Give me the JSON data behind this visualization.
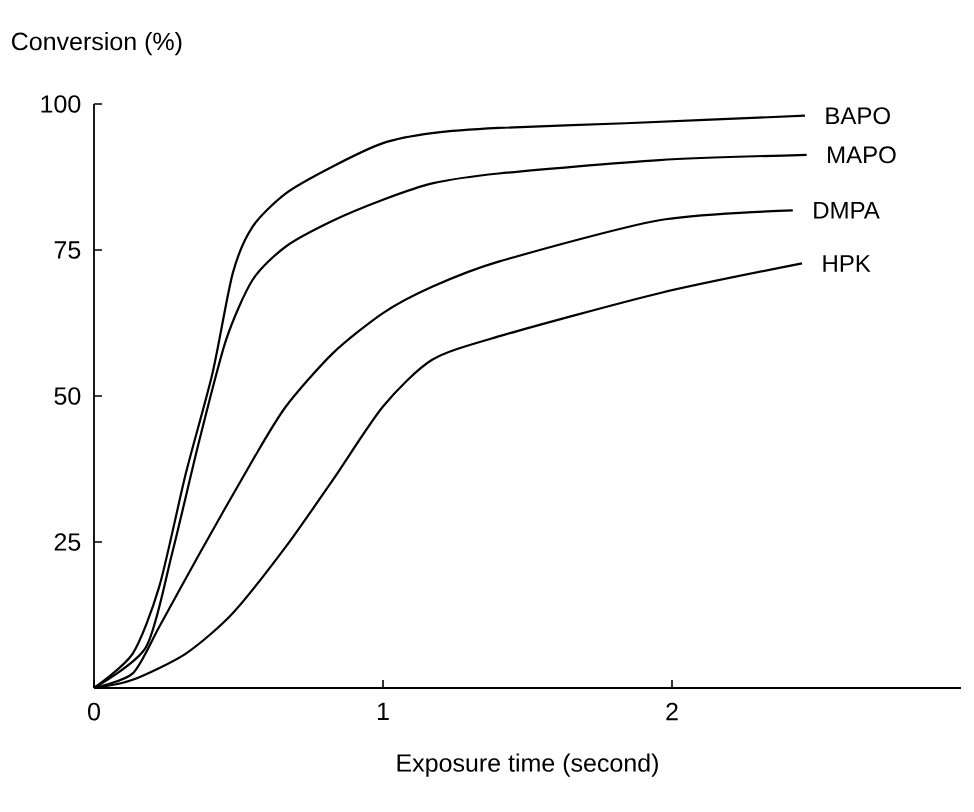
{
  "chart_data": {
    "type": "line",
    "xlabel": "Exposure time (second)",
    "ylabel": "Conversion (%)",
    "xlim": [
      0,
      3
    ],
    "ylim": [
      0,
      100
    ],
    "xticks": [
      0,
      1,
      2
    ],
    "yticks": [
      25,
      50,
      75,
      100
    ],
    "grid": false,
    "series": [
      {
        "name": "BAPO",
        "color": "#000000",
        "x": [
          0,
          0.134,
          0.226,
          0.318,
          0.41,
          0.48,
          0.549,
          0.664,
          0.826,
          1,
          1.17,
          1.4,
          1.84,
          2.46
        ],
        "values": [
          0,
          5.9,
          17.4,
          36.8,
          53.9,
          71,
          79,
          84.7,
          89.3,
          93.3,
          95,
          95.9,
          96.7,
          98
        ]
      },
      {
        "name": "MAPO",
        "color": "#000000",
        "x": [
          0,
          0.18,
          0.27,
          0.365,
          0.457,
          0.549,
          0.664,
          0.826,
          1,
          1.17,
          1.4,
          1.956,
          2.466
        ],
        "values": [
          0,
          7,
          23,
          42.5,
          59.6,
          69.9,
          75.6,
          80,
          83.6,
          86.4,
          88.1,
          90.4,
          91.3
        ]
      },
      {
        "name": "DMPA",
        "color": "#000000",
        "x": [
          0,
          0.134,
          0.226,
          0.365,
          0.549,
          0.664,
          0.826,
          1,
          1.17,
          1.4,
          1.956,
          2.418
        ],
        "values": [
          0,
          2.5,
          10.5,
          23,
          39,
          48.2,
          57.3,
          64.2,
          68.7,
          73,
          80.1,
          81.8
        ]
      },
      {
        "name": "HPK",
        "color": "#000000",
        "x": [
          0,
          0.134,
          0.318,
          0.48,
          0.664,
          0.826,
          1,
          1.17,
          1.4,
          1.956,
          2.45
        ],
        "values": [
          0,
          1.4,
          5.9,
          12.8,
          24.2,
          35.6,
          48.2,
          56.2,
          60.2,
          67.6,
          72.7
        ]
      }
    ]
  }
}
